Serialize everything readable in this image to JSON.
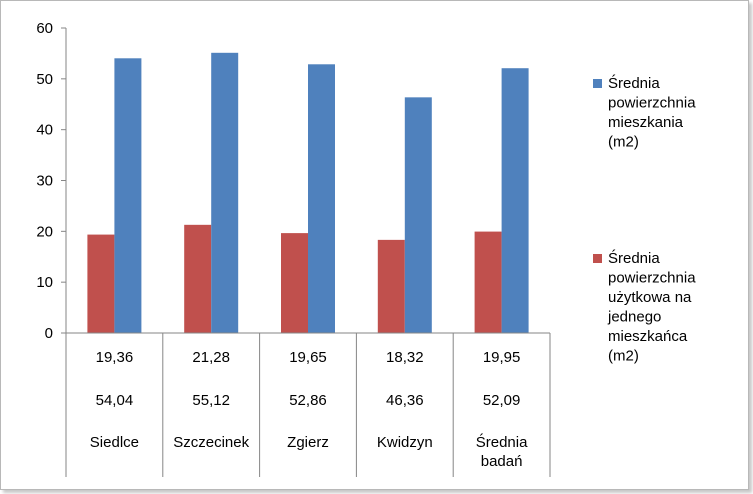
{
  "chart_data": {
    "type": "bar",
    "categories": [
      "Siedlce",
      "Szczecinek",
      "Zgierz",
      "Kwidzyn",
      "Średnia badań"
    ],
    "category_lines": [
      [
        "Siedlce"
      ],
      [
        "Szczecinek"
      ],
      [
        "Zgierz"
      ],
      [
        "Kwidzyn"
      ],
      [
        "Średnia",
        "badań"
      ]
    ],
    "series": [
      {
        "name": "Średnia powierzchnia mieszkania (m2)",
        "name_lines": [
          "Średnia",
          "powierzchnia",
          "mieszkania",
          "(m2)"
        ],
        "color": "#4f81bd",
        "values": [
          54.04,
          55.12,
          52.86,
          46.36,
          52.09
        ],
        "labels": [
          "54,04",
          "55,12",
          "52,86",
          "46,36",
          "52,09"
        ]
      },
      {
        "name": "Średnia powierzchnia użytkowa na jednego mieszkańca (m2)",
        "name_lines": [
          "Średnia",
          "powierzchnia",
          "użytkowa na",
          "jednego",
          "mieszkańca",
          "(m2)"
        ],
        "color": "#c0504d",
        "values": [
          19.36,
          21.28,
          19.65,
          18.32,
          19.95
        ],
        "labels": [
          "19,36",
          "21,28",
          "19,65",
          "18,32",
          "19,95"
        ]
      }
    ],
    "ylim": [
      0,
      60
    ],
    "yticks": [
      0,
      10,
      20,
      30,
      40,
      50,
      60
    ],
    "grid": false,
    "legend": "right",
    "data_table": true
  }
}
